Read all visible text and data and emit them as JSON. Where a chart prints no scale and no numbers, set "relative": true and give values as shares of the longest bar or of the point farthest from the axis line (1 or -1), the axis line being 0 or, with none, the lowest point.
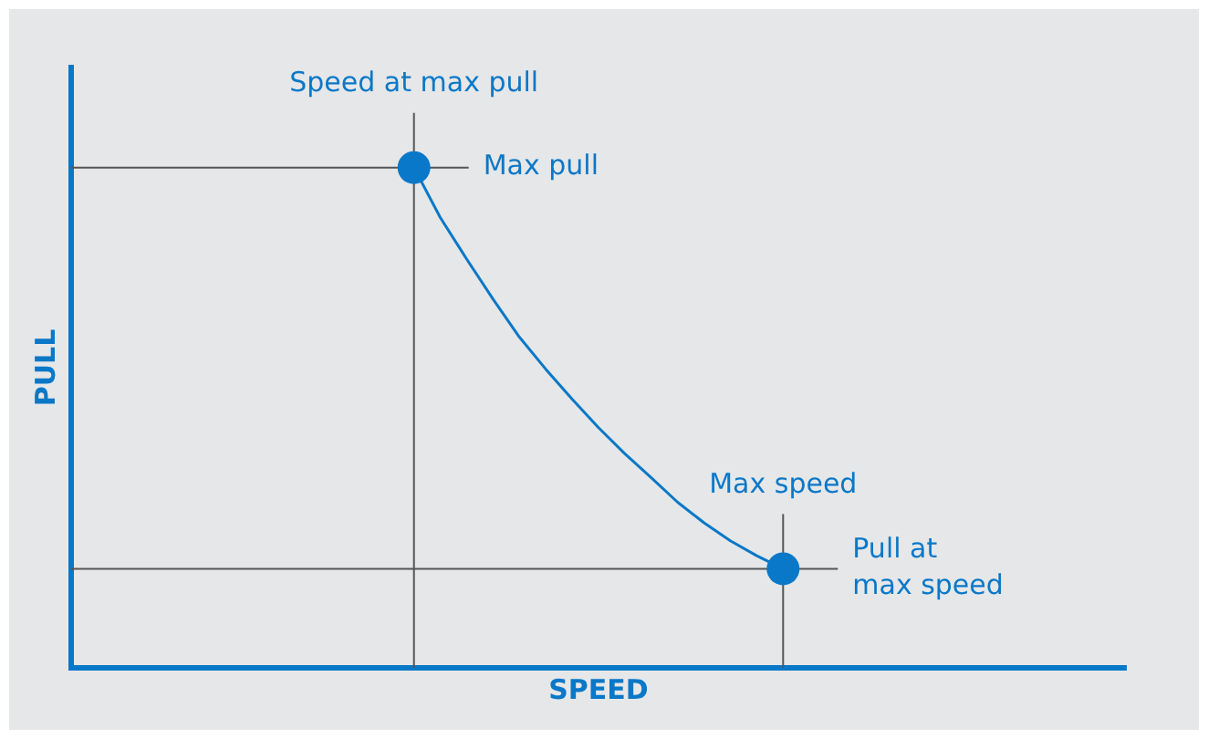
{
  "chart_data": {
    "type": "line",
    "relative": true,
    "xlabel": "SPEED",
    "ylabel": "PULL",
    "grid": false,
    "legend": false,
    "categories": [
      null,
      null,
      null,
      null,
      null,
      null,
      null,
      null,
      null,
      null,
      null,
      null,
      null,
      null,
      null,
      null,
      null,
      null,
      null,
      null,
      null,
      null,
      null,
      null,
      null,
      null,
      null,
      null,
      null,
      null,
      null,
      null,
      null,
      null,
      null,
      null,
      null,
      null,
      null,
      null,
      null
    ],
    "series": [
      {
        "color": "#0a78c8",
        "marker": "none",
        "values": [
          null,
          null,
          null,
          null,
          null,
          null,
          null,
          null,
          null,
          null,
          null,
          null,
          null,
          1,
          0.9,
          0.817,
          0.737,
          0.661,
          0.597,
          0.537,
          0.48,
          0.428,
          0.38,
          0.331,
          0.29,
          0.254,
          0.224,
          0.198,
          null,
          null,
          null,
          null,
          null,
          null,
          null,
          null,
          null,
          null,
          null,
          null,
          null
        ]
      }
    ],
    "annotations": [
      "Speed at max pull",
      "Max speed"
    ],
    "ref_lines": [
      {
        "axis": "y",
        "value": 1,
        "label": "Max pull",
        "color": "#555555"
      },
      {
        "axis": "y",
        "value": 0.198,
        "label": "Pull at\nmax speed",
        "color": "#555555"
      }
    ]
  }
}
